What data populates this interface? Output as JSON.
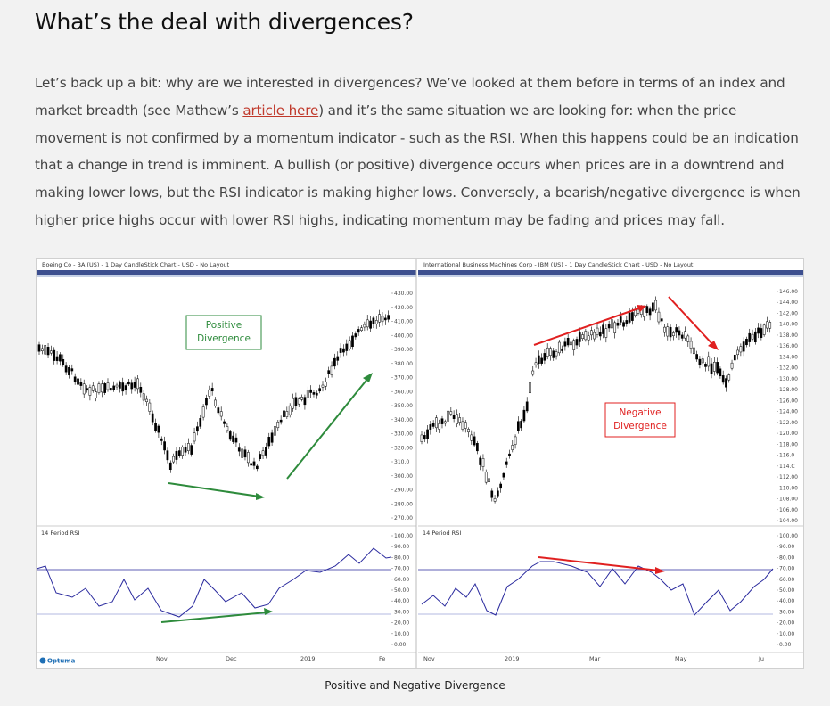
{
  "article": {
    "heading": "What’s the deal with divergences?",
    "para_before_link": "Let’s back up a bit: why are we interested in divergences? We’ve looked at them before in terms of an index and market breadth (see Mathew’s ",
    "link_text": "article here",
    "para_after_link": ") and it’s the same situation we are looking for: when the price movement is not confirmed by a momentum indicator - such as the RSI. When this happens could be an indication that a change in trend is imminent. A bullish (or positive) divergence occurs when prices are in a downtrend and making lower lows, but the RSI indicator is making higher lows. Conversely, a bearish/negative divergence is when higher price highs occur with lower RSI highs, indicating momentum may be fading and prices may fall.",
    "caption": "Positive and Negative Divergence"
  },
  "left_chart": {
    "title": "Boeing Co - BA (US) - 1 Day CandleStick Chart - USD - No Layout",
    "annotation": [
      "Positive",
      "Divergence"
    ],
    "annotation_color": "#2e8b3c",
    "price_ticks": [
      "430.00",
      "420.00",
      "410.00",
      "400.00",
      "390.00",
      "380.00",
      "370.00",
      "360.00",
      "350.00",
      "340.00",
      "330.00",
      "320.00",
      "310.0",
      "300.00",
      "290.00",
      "280.00",
      "270.00"
    ],
    "rsi_label": "14 Period RSI",
    "x_labels": [
      "Nov",
      "Dec",
      "2019",
      "Fe"
    ],
    "brand": "Optuma"
  },
  "right_chart": {
    "title": "International Business Machines Corp - IBM (US) - 1 Day CandleStick Chart - USD - No Layout",
    "annotation": [
      "Negative",
      "Divergence"
    ],
    "annotation_color": "#e02020",
    "price_ticks": [
      "146.00",
      "144.00",
      "142.00",
      "140.00",
      "138.00",
      "136.00",
      "134.00",
      "132.00",
      "130.00",
      "128.00",
      "126.00",
      "124.00",
      "122.00",
      "120.00",
      "118.00",
      "116.0",
      "114.C",
      "112.00",
      "110.00",
      "108.00",
      "106.00",
      "104.00"
    ],
    "rsi_label": "14 Period RSI",
    "x_labels": [
      "Nov",
      "2019",
      "Mar",
      "May",
      "Ju"
    ]
  },
  "rsi_ticks": [
    "100.00",
    "90.00",
    "80.00",
    "70.00",
    "60.00",
    "50.00",
    "40.00",
    "30.00",
    "20.00",
    "10.00",
    "0.00"
  ],
  "colors": {
    "candle": "#000000",
    "rsi_line": "#2a2a9e",
    "positive": "#2e8b3c",
    "negative": "#e02020"
  }
}
